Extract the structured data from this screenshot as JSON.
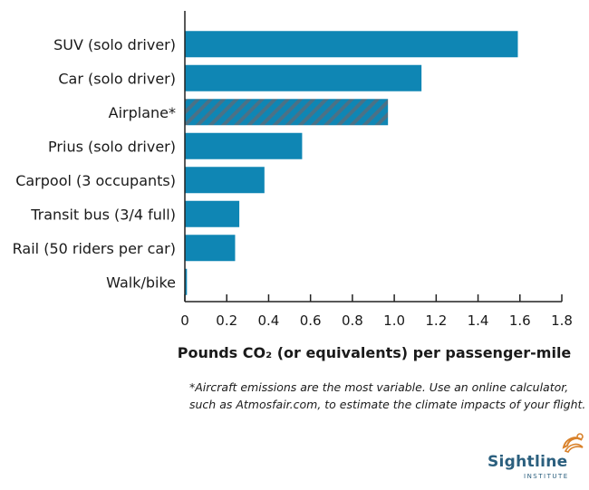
{
  "chart_data": {
    "type": "bar",
    "orientation": "horizontal",
    "categories": [
      "SUV (solo driver)",
      "Car (solo driver)",
      "Airplane*",
      "Prius (solo driver)",
      "Carpool (3 occupants)",
      "Transit bus (3/4 full)",
      "Rail (50 riders per car)",
      "Walk/bike"
    ],
    "values": [
      1.59,
      1.13,
      0.97,
      0.56,
      0.38,
      0.26,
      0.24,
      0.01
    ],
    "highlight": {
      "category": "Airplane*",
      "pattern": "diagonal-hatch"
    },
    "xlabel": "Pounds CO₂ (or equivalents) per passenger-mile",
    "xlim": [
      0,
      1.8
    ],
    "xticks": [
      "0",
      "0.2",
      "0.4",
      "0.6",
      "0.8",
      "1.0",
      "1.2",
      "1.4",
      "1.6",
      "1.8"
    ],
    "grid": false,
    "colors": {
      "bar": "#0f86b4",
      "hatch_stripe": "#4b7186",
      "axis": "#222222"
    }
  },
  "footnote": {
    "line1": "*Aircraft emissions are the most variable.  Use an online calculator,",
    "line2": "such as Atmosfair.com, to estimate the climate impacts of your flight."
  },
  "logo": {
    "name": "Sightline",
    "subtitle": "INSTITUTE",
    "colors": {
      "text": "#2b5f7e",
      "mark": "#d9822b"
    }
  }
}
